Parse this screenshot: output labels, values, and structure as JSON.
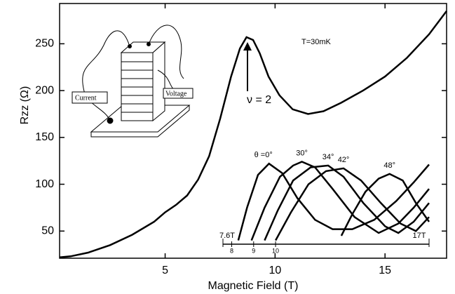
{
  "chart_data": [
    {
      "type": "line",
      "x_label": "Magnetic Field (T)",
      "y_label": "Rzz (Ω)",
      "xlim": [
        0.2,
        17.8
      ],
      "ylim": [
        21,
        293
      ],
      "xticks": [
        5,
        10,
        15
      ],
      "yticks": [
        50,
        100,
        150,
        200,
        250
      ],
      "annotations": [
        "T=30mK",
        "ν = 2"
      ],
      "color": "#000000",
      "x": [
        0.2,
        0.7,
        1.5,
        2.5,
        3.5,
        4.5,
        5,
        5.5,
        6,
        6.5,
        7,
        7.5,
        8,
        8.4,
        8.7,
        9,
        9.3,
        9.7,
        10.2,
        10.8,
        11.5,
        12.2,
        13,
        14,
        15,
        16,
        17,
        17.8
      ],
      "values": [
        22,
        23,
        27,
        35,
        46,
        60,
        70,
        78,
        88,
        105,
        130,
        170,
        215,
        245,
        257,
        254,
        240,
        215,
        195,
        180,
        175,
        178,
        187,
        200,
        215,
        235,
        260,
        285
      ]
    },
    {
      "type": "line",
      "xlim": [
        7.6,
        17
      ],
      "ylim": [
        21,
        293
      ],
      "xticks": [
        {
          "value": 7.6,
          "label": "7.6T"
        },
        8,
        9,
        10,
        {
          "value": 17,
          "label": "17T"
        }
      ],
      "series": [
        {
          "name": "θ =0°",
          "color": "#000000",
          "x": [
            8.3,
            8.7,
            9.2,
            9.7,
            10.3,
            11,
            11.8,
            12.6,
            13.5,
            14.5,
            15.5,
            16.3,
            17
          ],
          "values": [
            40,
            75,
            110,
            122,
            112,
            85,
            62,
            52,
            52,
            62,
            82,
            102,
            121
          ]
        },
        {
          "name": "30°",
          "color": "#000000",
          "x": [
            8.9,
            9.5,
            10.2,
            10.8,
            11.2,
            11.8,
            12.6,
            13.6,
            14.7,
            15.6,
            16.3,
            17
          ],
          "values": [
            40,
            75,
            108,
            120,
            124,
            118,
            95,
            65,
            48,
            58,
            75,
            95
          ]
        },
        {
          "name": "34°",
          "color": "#000000",
          "x": [
            9.5,
            10.1,
            10.8,
            11.6,
            12.4,
            13.1,
            14,
            15,
            15.6,
            16.3,
            17
          ],
          "values": [
            40,
            72,
            104,
            118,
            120,
            108,
            80,
            55,
            48,
            60,
            80
          ]
        },
        {
          "name": "42°",
          "color": "#000000",
          "x": [
            10,
            10.7,
            11.5,
            12.3,
            13.1,
            13.9,
            14.8,
            15.7,
            16.4,
            17
          ],
          "values": [
            40,
            70,
            100,
            114,
            117,
            104,
            80,
            58,
            50,
            65
          ]
        },
        {
          "name": "48°",
          "color": "#000000",
          "x": [
            13,
            13.5,
            14.1,
            14.7,
            15.2,
            15.8,
            16.4,
            17
          ],
          "values": [
            45,
            68,
            92,
            106,
            111,
            104,
            80,
            60
          ]
        }
      ]
    }
  ],
  "diagram": {
    "current_label": "Current",
    "voltage_label": "Voltage"
  }
}
